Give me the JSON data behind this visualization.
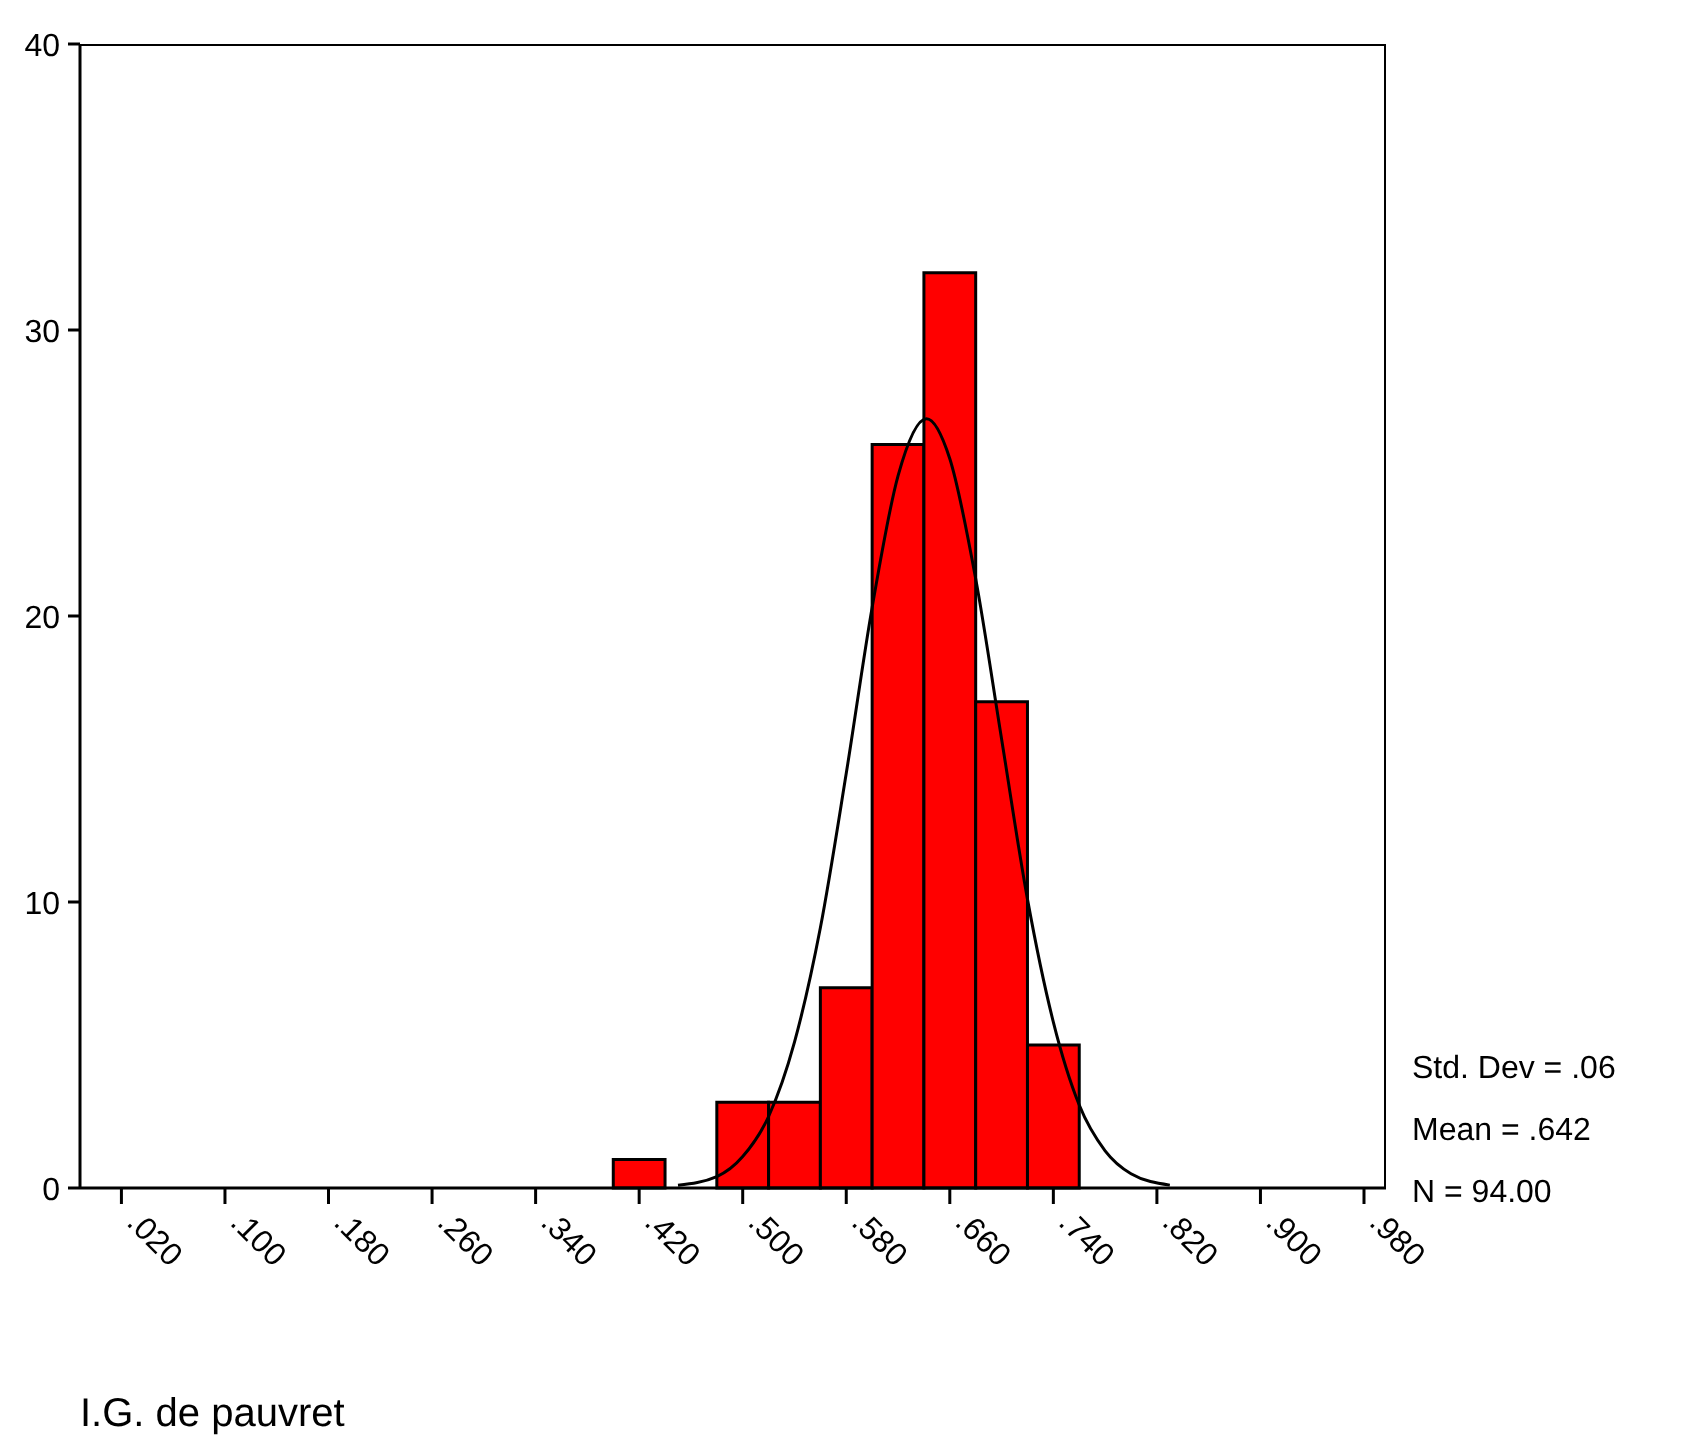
{
  "chart_data": {
    "type": "histogram",
    "xlabel": "I.G. de pauvret",
    "bins": [
      0.4,
      0.44,
      0.48,
      0.52,
      0.56,
      0.6,
      0.64,
      0.68,
      0.72,
      0.76
    ],
    "values": [
      1,
      0,
      3,
      3,
      7,
      26,
      32,
      17,
      5
    ],
    "color": "#ff0000",
    "series": [
      {
        "type": "line",
        "color": "#000000",
        "x": [
          0.45,
          0.48,
          0.5,
          0.52,
          0.54,
          0.56,
          0.58,
          0.6,
          0.62,
          0.642,
          0.66,
          0.68,
          0.7,
          0.72,
          0.74,
          0.76,
          0.78,
          0.8,
          0.83
        ],
        "values": [
          0.1,
          0.4,
          1.1,
          2.5,
          5.1,
          9.1,
          14.5,
          20.3,
          24.9,
          26.9,
          25.5,
          21.3,
          15.7,
          10.1,
          5.8,
          2.9,
          1.3,
          0.5,
          0.1
        ]
      }
    ],
    "xlim": [
      -0.012,
      0.997
    ],
    "xticks": [
      {
        "value": 0.02,
        "label": ".020"
      },
      {
        "value": 0.1,
        "label": ".100"
      },
      {
        "value": 0.18,
        "label": ".180"
      },
      {
        "value": 0.26,
        "label": ".260"
      },
      {
        "value": 0.34,
        "label": ".340"
      },
      {
        "value": 0.42,
        "label": ".420"
      },
      {
        "value": 0.5,
        "label": ".500"
      },
      {
        "value": 0.58,
        "label": ".580"
      },
      {
        "value": 0.66,
        "label": ".660"
      },
      {
        "value": 0.74,
        "label": ".740"
      },
      {
        "value": 0.82,
        "label": ".820"
      },
      {
        "value": 0.9,
        "label": ".900"
      },
      {
        "value": 0.98,
        "label": ".980"
      }
    ],
    "ylim": [
      0,
      40
    ],
    "yticks": [
      0,
      10,
      20,
      30,
      40
    ],
    "grid": false,
    "legend": false,
    "annotations": [
      "Std. Dev = .06",
      "Mean = .642",
      "N = 94.00"
    ]
  }
}
